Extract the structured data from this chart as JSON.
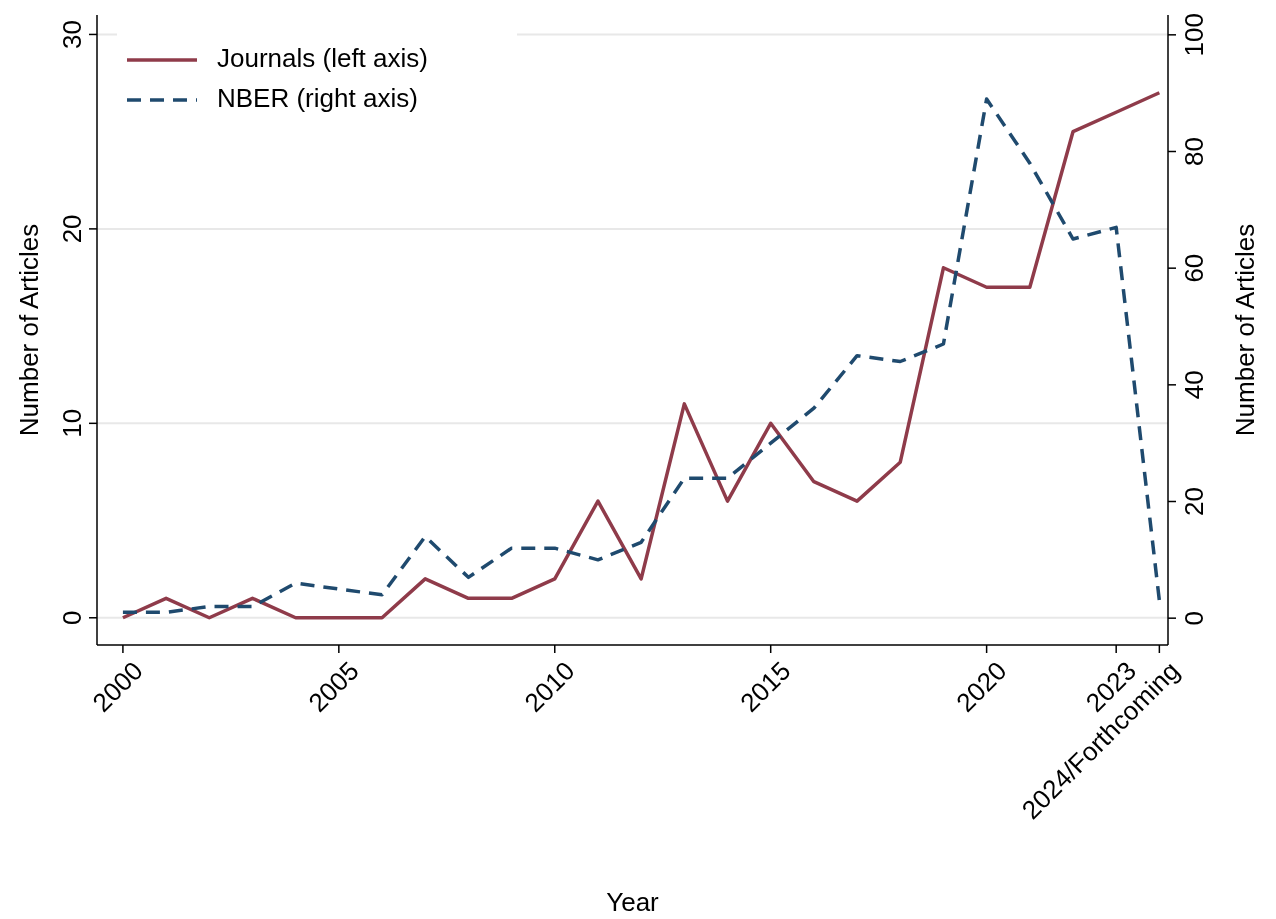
{
  "chart_data": {
    "type": "line",
    "xlabel": "Year",
    "ylabel": "Number of Articles",
    "y2label": "Number of Articles",
    "x": [
      2000,
      2001,
      2002,
      2003,
      2004,
      2005,
      2006,
      2007,
      2008,
      2009,
      2010,
      2011,
      2012,
      2013,
      2014,
      2015,
      2016,
      2017,
      2018,
      2019,
      2020,
      2021,
      2022,
      2023,
      2024
    ],
    "series": [
      {
        "name": "Journals (left axis)",
        "color": "#8f3b4a",
        "line_style": "solid",
        "values": [
          0,
          1,
          0,
          1,
          0,
          0,
          0,
          2,
          1,
          1,
          2,
          6,
          2,
          11,
          6,
          10,
          7,
          6,
          8,
          18,
          17,
          17,
          25,
          26,
          27
        ]
      },
      {
        "name": "NBER (right axis)",
        "color": "#1f4a6e",
        "line_style": "dashed",
        "axis": "y2",
        "values": [
          1,
          1,
          2,
          2,
          6,
          5,
          4,
          14,
          7,
          12,
          12,
          10,
          13,
          24,
          24,
          30,
          36,
          45,
          44,
          47,
          89,
          78,
          65,
          67,
          3
        ]
      }
    ],
    "xlim": [
      1999.4,
      2024.2
    ],
    "xticks": [
      2000,
      2005,
      2010,
      2015,
      2020,
      2023,
      {
        "value": 2024,
        "label": "2024/Forthcoming"
      }
    ],
    "ylim": [
      -1.4,
      31
    ],
    "yticks": [
      0,
      10,
      20,
      30
    ],
    "y2lim": [
      -4.6,
      103.4
    ],
    "y2ticks": [
      0,
      20,
      40,
      60,
      80,
      100
    ],
    "grid": "y",
    "legend": "top left"
  }
}
